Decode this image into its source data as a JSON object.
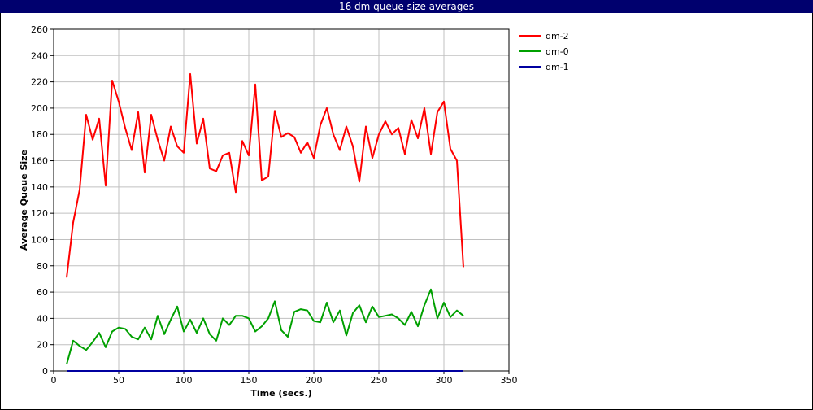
{
  "chart_data": {
    "type": "line",
    "title": "16 dm queue size averages",
    "xlabel": "Time (secs.)",
    "ylabel": "Average Queue Size",
    "xlim": [
      0,
      350
    ],
    "ylim": [
      0,
      260
    ],
    "x_ticks": [
      0,
      50,
      100,
      150,
      200,
      250,
      300,
      350
    ],
    "y_ticks": [
      0,
      20,
      40,
      60,
      80,
      100,
      120,
      140,
      160,
      180,
      200,
      220,
      240,
      260
    ],
    "grid": true,
    "legend_position": "right",
    "series": [
      {
        "name": "dm-2",
        "color": "#ff0000",
        "x": [
          10,
          15,
          20,
          25,
          30,
          35,
          40,
          45,
          50,
          55,
          60,
          65,
          70,
          75,
          80,
          85,
          90,
          95,
          100,
          105,
          110,
          115,
          120,
          125,
          130,
          135,
          140,
          145,
          150,
          155,
          160,
          165,
          170,
          175,
          180,
          185,
          190,
          195,
          200,
          205,
          210,
          215,
          220,
          225,
          230,
          235,
          240,
          245,
          250,
          255,
          260,
          265,
          270,
          275,
          280,
          285,
          290,
          295,
          300,
          305,
          310,
          315
        ],
        "y": [
          71,
          113,
          138,
          195,
          176,
          192,
          141,
          221,
          205,
          185,
          168,
          197,
          151,
          195,
          176,
          160,
          186,
          171,
          166,
          226,
          173,
          192,
          154,
          152,
          164,
          166,
          136,
          175,
          164,
          218,
          145,
          148,
          198,
          178,
          181,
          178,
          166,
          174,
          162,
          187,
          200,
          180,
          168,
          186,
          171,
          144,
          186,
          162,
          180,
          190,
          180,
          185,
          165,
          191,
          177,
          200,
          165,
          197,
          205,
          169,
          160,
          79
        ]
      },
      {
        "name": "dm-0",
        "color": "#00a000",
        "x": [
          10,
          15,
          20,
          25,
          30,
          35,
          40,
          45,
          50,
          55,
          60,
          65,
          70,
          75,
          80,
          85,
          90,
          95,
          100,
          105,
          110,
          115,
          120,
          125,
          130,
          135,
          140,
          145,
          150,
          155,
          160,
          165,
          170,
          175,
          180,
          185,
          190,
          195,
          200,
          205,
          210,
          215,
          220,
          225,
          230,
          235,
          240,
          245,
          250,
          255,
          260,
          265,
          270,
          275,
          280,
          285,
          290,
          295,
          300,
          305,
          310,
          315
        ],
        "y": [
          5,
          23,
          19,
          16,
          22,
          29,
          18,
          30,
          33,
          32,
          26,
          24,
          33,
          24,
          42,
          28,
          39,
          49,
          30,
          39,
          29,
          40,
          28,
          23,
          40,
          35,
          42,
          42,
          40,
          30,
          34,
          40,
          53,
          31,
          26,
          45,
          47,
          46,
          38,
          37,
          52,
          37,
          46,
          27,
          44,
          50,
          37,
          49,
          41,
          42,
          43,
          40,
          35,
          45,
          34,
          50,
          62,
          40,
          52,
          41,
          46,
          42
        ]
      },
      {
        "name": "dm-1",
        "color": "#0000a0",
        "x": [
          10,
          315
        ],
        "y": [
          0,
          0
        ]
      }
    ]
  }
}
